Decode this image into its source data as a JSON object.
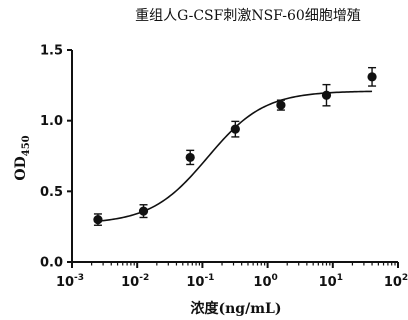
{
  "chart_data": {
    "type": "scatter",
    "title": "重组人G-CSF刺激NSF-60细胞增殖",
    "xlabel": "浓度(ng/mL)",
    "ylabel": {
      "main": "OD",
      "sub": "450"
    },
    "x_scale": "log",
    "xlim": [
      0.001,
      100
    ],
    "ylim": [
      0.0,
      1.5
    ],
    "x_ticks": [
      {
        "base": "10",
        "exp": "-3",
        "value": 0.001
      },
      {
        "base": "10",
        "exp": "-2",
        "value": 0.01
      },
      {
        "base": "10",
        "exp": "-1",
        "value": 0.1
      },
      {
        "base": "10",
        "exp": "0",
        "value": 1
      },
      {
        "base": "10",
        "exp": "1",
        "value": 10
      },
      {
        "base": "10",
        "exp": "2",
        "value": 100
      }
    ],
    "y_ticks": [
      {
        "label": "0.0",
        "value": 0.0
      },
      {
        "label": "0.5",
        "value": 0.5
      },
      {
        "label": "1.0",
        "value": 1.0
      },
      {
        "label": "1.5",
        "value": 1.5
      }
    ],
    "grid": false,
    "points": [
      {
        "x": 0.0025,
        "y": 0.3,
        "err": 0.04
      },
      {
        "x": 0.0125,
        "y": 0.36,
        "err": 0.045
      },
      {
        "x": 0.065,
        "y": 0.74,
        "err": 0.05
      },
      {
        "x": 0.32,
        "y": 0.94,
        "err": 0.055
      },
      {
        "x": 1.6,
        "y": 1.11,
        "err": 0.035
      },
      {
        "x": 8.0,
        "y": 1.18,
        "err": 0.075
      },
      {
        "x": 40.0,
        "y": 1.31,
        "err": 0.065
      }
    ],
    "fit": {
      "model": "4PL",
      "bottom": 0.27,
      "top": 1.21,
      "ec50": 0.12,
      "hill": 1.0
    },
    "colors": {
      "marker": "#111111",
      "line": "#111111",
      "axis": "#111111"
    }
  }
}
